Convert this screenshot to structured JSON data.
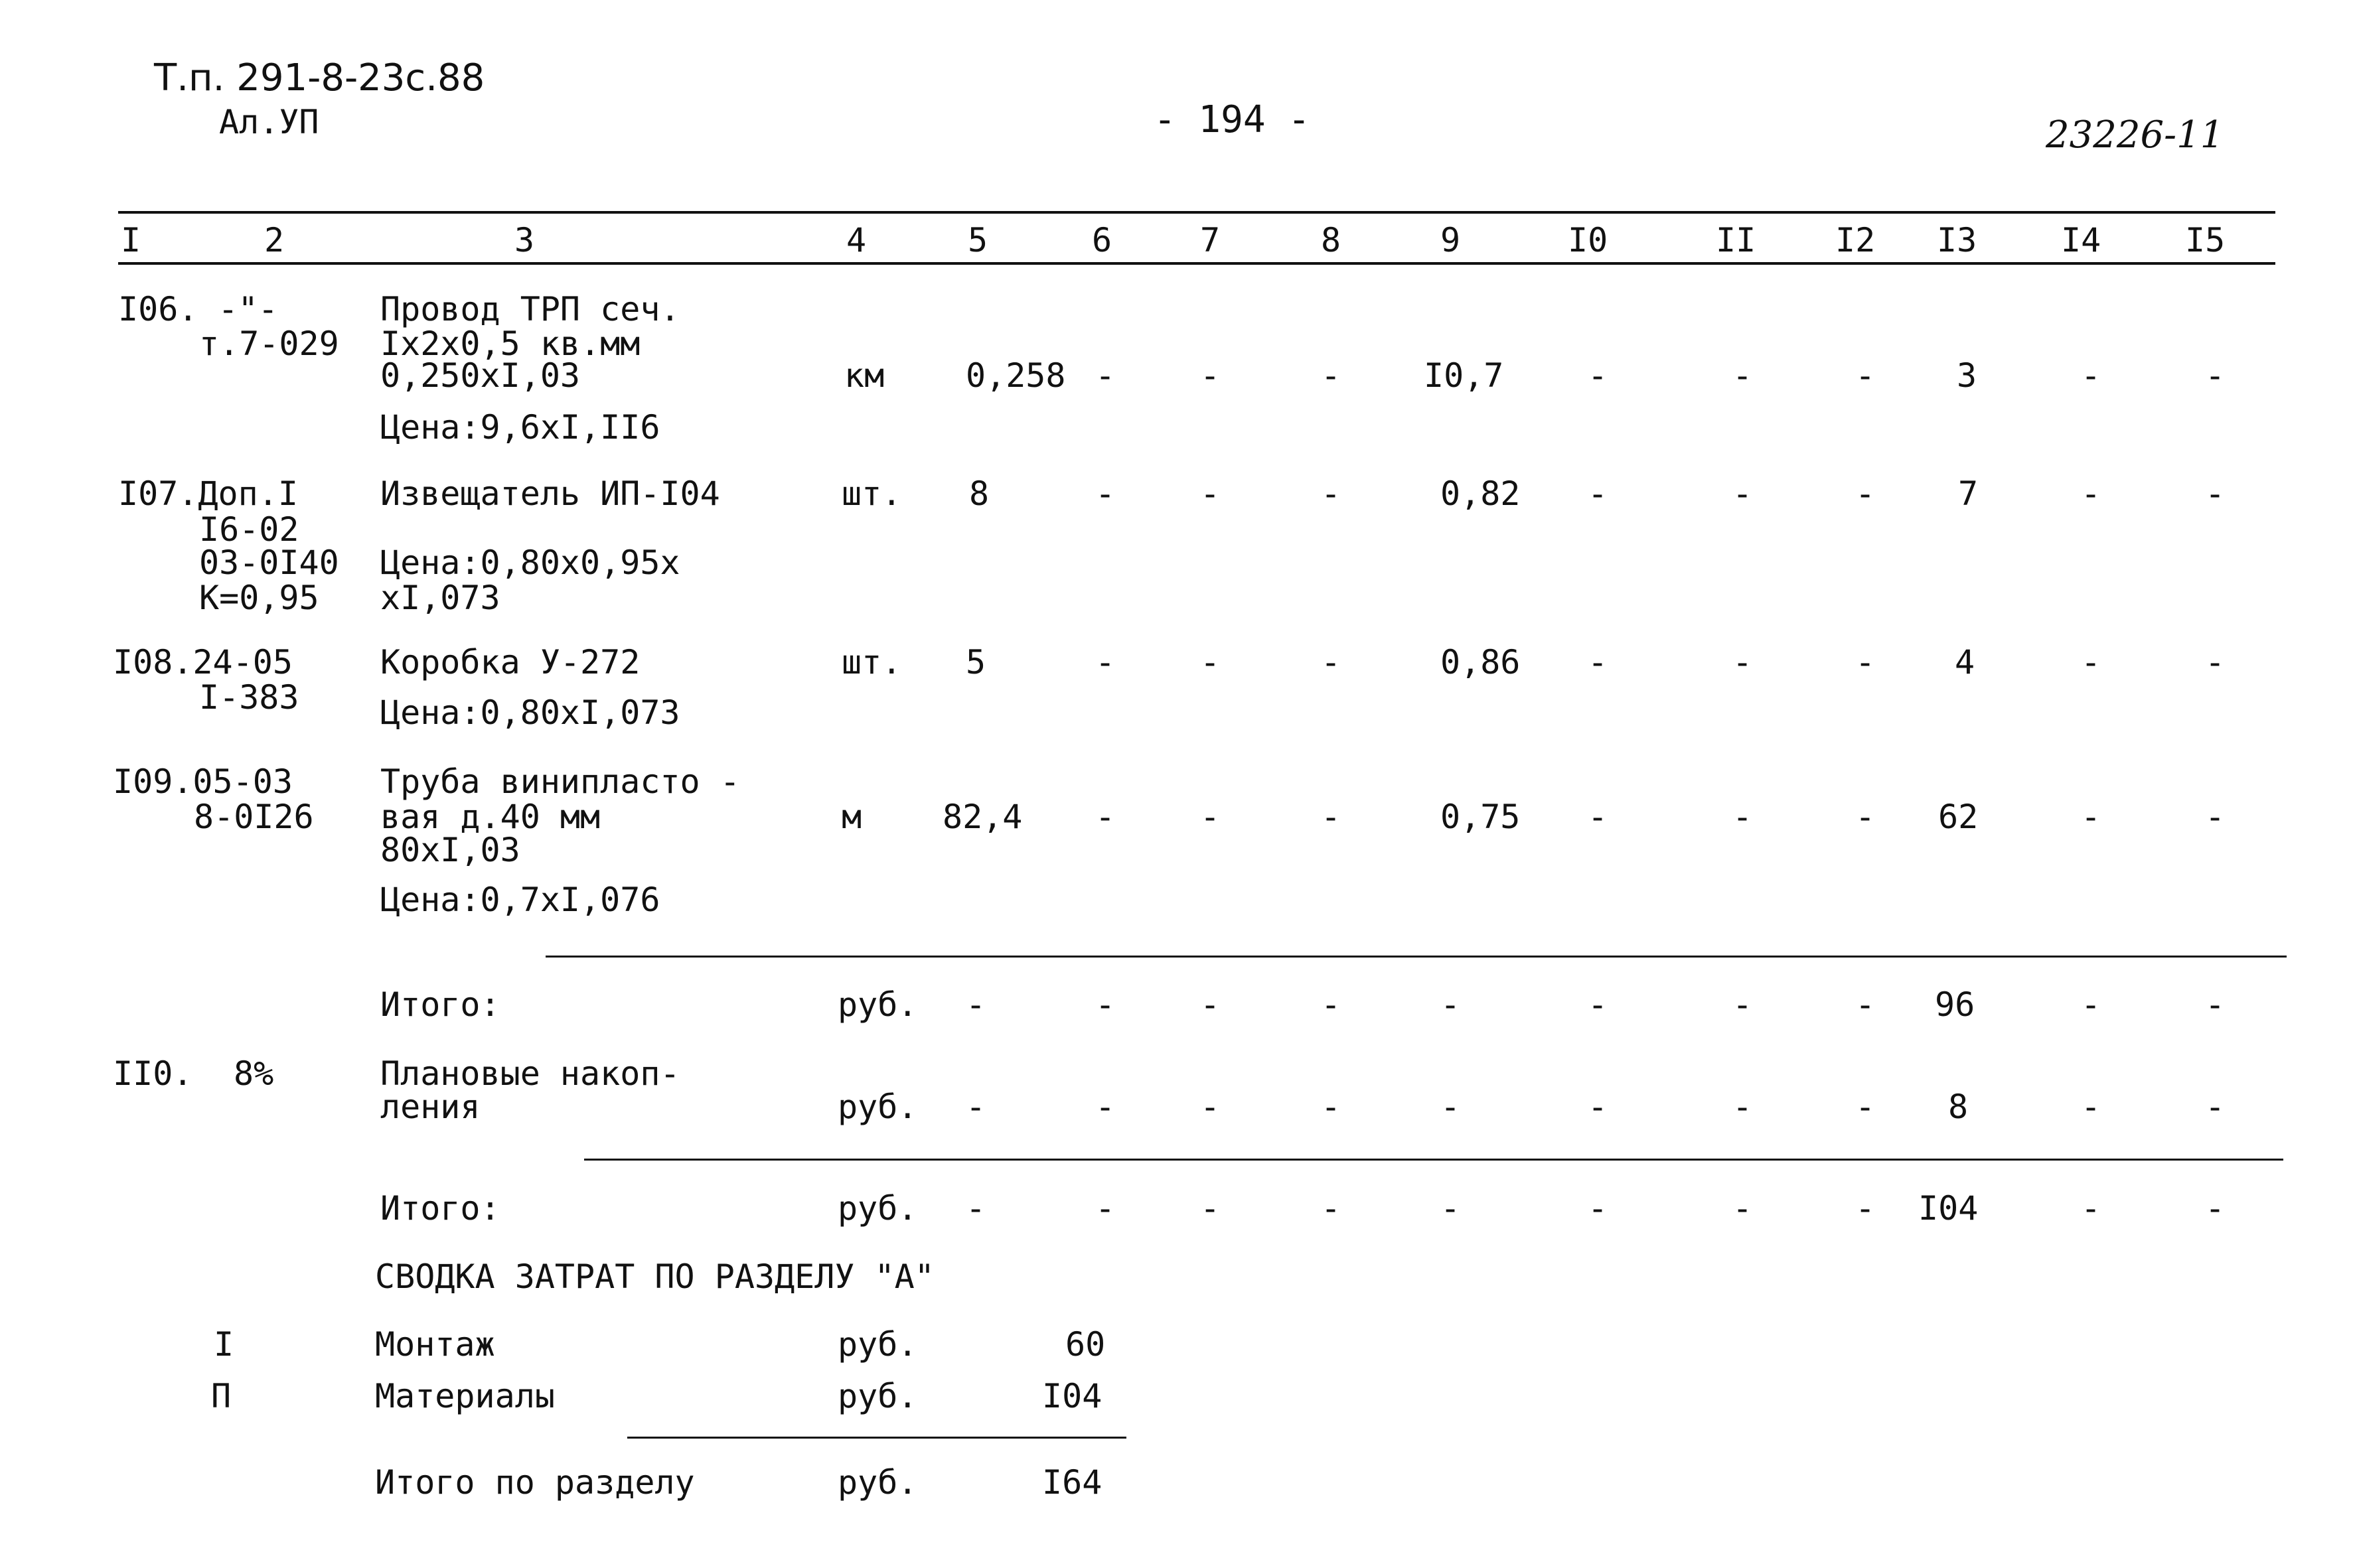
{
  "header": {
    "doc_code": "Т.п. 291-8-23с.88",
    "album": "Ал.УП",
    "page_number": "- 194 -",
    "stamp": "23226-11"
  },
  "columns": [
    "I",
    "2",
    "3",
    "4",
    "5",
    "6",
    "7",
    "8",
    "9",
    "I0",
    "II",
    "I2",
    "I3",
    "I4",
    "I5"
  ],
  "rows": [
    {
      "num": "I06. -\"-",
      "code": [
        "т.7-029"
      ],
      "desc": [
        "Провод ТРП сеч.",
        "Iх2х0,5 кв.мм",
        "0,250хI,03"
      ],
      "price": "Цена:9,6хI,II6",
      "unit": "км",
      "c5": "0,258",
      "c6": "-",
      "c7": "-",
      "c8": "-",
      "c9": "I0,7",
      "c10": "-",
      "c11": "-",
      "c12": "-",
      "c13": "3",
      "c14": "-",
      "c15": "-"
    },
    {
      "num": "I07.Доп.I",
      "code": [
        "I6-02",
        "03-0I40",
        "К=0,95"
      ],
      "desc": [
        "Извещатель ИП-I04"
      ],
      "price": "Цена:0,80х0,95х",
      "price2": "хI,073",
      "unit": "шт.",
      "c5": "8",
      "c6": "-",
      "c7": "-",
      "c8": "-",
      "c9": "0,82",
      "c10": "-",
      "c11": "-",
      "c12": "-",
      "c13": "7",
      "c14": "-",
      "c15": "-"
    },
    {
      "num": "I08.24-05",
      "code": [
        "I-383"
      ],
      "desc": [
        "Коробка У-272"
      ],
      "price": "Цена:0,80хI,073",
      "unit": "шт.",
      "c5": "5",
      "c6": "-",
      "c7": "-",
      "c8": "-",
      "c9": "0,86",
      "c10": "-",
      "c11": "-",
      "c12": "-",
      "c13": "4",
      "c14": "-",
      "c15": "-"
    },
    {
      "num": "I09.05-03",
      "code": [
        "8-0I26"
      ],
      "desc": [
        "Труба винипласто -",
        "вая д.40 мм",
        "80хI,03"
      ],
      "price": "Цена:0,7хI,076",
      "unit": "м",
      "c5": "82,4",
      "c6": "-",
      "c7": "-",
      "c8": "-",
      "c9": "0,75",
      "c10": "-",
      "c11": "-",
      "c12": "-",
      "c13": "62",
      "c14": "-",
      "c15": "-"
    }
  ],
  "subtotal1": {
    "label": "Итого:",
    "unit": "руб.",
    "c5": "-",
    "c6": "-",
    "c7": "-",
    "c8": "-",
    "c9": "-",
    "c10": "-",
    "c11": "-",
    "c12": "-",
    "c13": "96",
    "c14": "-",
    "c15": "-"
  },
  "planned": {
    "num": "II0.",
    "pct": "8%",
    "desc": [
      "Плановые накоп-",
      "ления"
    ],
    "unit": "руб.",
    "c5": "-",
    "c6": "-",
    "c7": "-",
    "c8": "-",
    "c9": "-",
    "c10": "-",
    "c11": "-",
    "c12": "-",
    "c13": "8",
    "c14": "-",
    "c15": "-"
  },
  "subtotal2": {
    "label": "Итого:",
    "unit": "руб.",
    "c5": "-",
    "c6": "-",
    "c7": "-",
    "c8": "-",
    "c9": "-",
    "c10": "-",
    "c11": "-",
    "c12": "-",
    "c13": "I04",
    "c14": "-",
    "c15": "-"
  },
  "summary": {
    "title": "СВОДКА ЗАТРАТ ПО РАЗДЕЛУ \"А\"",
    "items": [
      {
        "num": "I",
        "label": "Монтаж",
        "unit": "руб.",
        "value": "60"
      },
      {
        "num": "П",
        "label": "Материалы",
        "unit": "руб.",
        "value": "I04"
      }
    ],
    "total": {
      "label": "Итого по разделу",
      "unit": "руб.",
      "value": "I64"
    }
  }
}
